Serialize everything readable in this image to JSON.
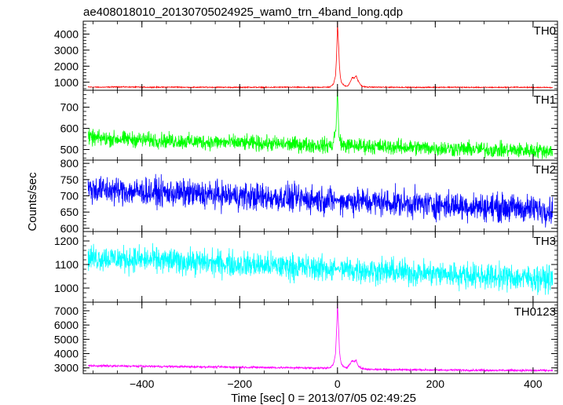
{
  "title": "ae408018010_20130705024925_wam0_trn_4band_long.qdp",
  "ylabel": "Counts/sec",
  "xlabel": "Time [sec] 0 = 2013/07/05 02:49:25",
  "colors": {
    "TH0": "#ff0000",
    "TH1": "#00ff00",
    "TH2": "#0000ff",
    "TH3": "#00ffff",
    "TH0123": "#ff00ff",
    "frame": "#000000"
  },
  "chart_data": {
    "type": "line",
    "title": "ae408018010_20130705024925_wam0_trn_4band_long.qdp",
    "xlabel": "Time [sec] 0 = 2013/07/05 02:49:25",
    "ylabel": "Counts/sec",
    "xlim": [
      -520,
      450
    ],
    "x_ticks": [
      -400,
      -200,
      0,
      200,
      400
    ],
    "x_tick_labels": [
      "−400",
      "−200",
      "0",
      "200",
      "400"
    ],
    "grid": false,
    "panels": [
      {
        "name": "TH0",
        "ylim": [
          500,
          4800
        ],
        "y_ticks": [
          1000,
          2000,
          3000,
          4000
        ],
        "series": [
          {
            "name": "TH0",
            "x": [
              -510,
              -480,
              -450,
              -420,
              -390,
              -360,
              -330,
              -300,
              -270,
              -240,
              -210,
              -180,
              -150,
              -120,
              -90,
              -60,
              -30,
              -15,
              -8,
              -4,
              -2,
              0,
              2,
              4,
              6,
              8,
              10,
              14,
              18,
              22,
              26,
              30,
              34,
              38,
              42,
              46,
              50,
              60,
              90,
              120,
              150,
              180,
              210,
              240,
              270,
              300,
              330,
              360,
              390,
              420,
              440
            ],
            "y": [
              700,
              690,
              710,
              700,
              690,
              690,
              700,
              680,
              690,
              690,
              680,
              690,
              680,
              690,
              690,
              680,
              690,
              700,
              900,
              1400,
              2500,
              4700,
              3500,
              2000,
              1300,
              1000,
              900,
              800,
              750,
              800,
              1000,
              1300,
              1250,
              1400,
              1100,
              900,
              750,
              700,
              690,
              690,
              680,
              680,
              690,
              690,
              680,
              680,
              680,
              690,
              680,
              680,
              670
            ]
          }
        ]
      },
      {
        "name": "TH1",
        "ylim": [
          450,
          780
        ],
        "y_ticks": [
          500,
          600,
          700
        ],
        "series": [
          {
            "name": "TH1",
            "x": [
              -510,
              -480,
              -450,
              -420,
              -390,
              -360,
              -330,
              -300,
              -270,
              -240,
              -210,
              -180,
              -150,
              -120,
              -90,
              -60,
              -30,
              -10,
              -3,
              0,
              3,
              10,
              30,
              60,
              90,
              120,
              150,
              180,
              210,
              240,
              270,
              300,
              330,
              360,
              390,
              420,
              440
            ],
            "y": [
              555,
              552,
              550,
              548,
              545,
              543,
              540,
              538,
              536,
              534,
              532,
              530,
              528,
              526,
              524,
              522,
              520,
              520,
              600,
              780,
              560,
              520,
              518,
              516,
              514,
              512,
              510,
              508,
              506,
              504,
              502,
              500,
              498,
              497,
              496,
              495,
              494
            ]
          }
        ]
      },
      {
        "name": "TH2",
        "ylim": [
          590,
          810
        ],
        "y_ticks": [
          600,
          650,
          700,
          750,
          800
        ],
        "series": [
          {
            "name": "TH2",
            "x": [
              -510,
              -480,
              -450,
              -420,
              -390,
              -360,
              -330,
              -300,
              -270,
              -240,
              -210,
              -180,
              -150,
              -120,
              -90,
              -60,
              -30,
              0,
              30,
              60,
              90,
              120,
              150,
              180,
              210,
              240,
              270,
              300,
              330,
              360,
              390,
              420,
              440
            ],
            "y": [
              720,
              718,
              716,
              714,
              712,
              710,
              708,
              706,
              704,
              702,
              700,
              698,
              696,
              694,
              692,
              690,
              688,
              686,
              684,
              682,
              680,
              678,
              676,
              674,
              672,
              670,
              668,
              666,
              664,
              662,
              660,
              658,
              657
            ]
          }
        ]
      },
      {
        "name": "TH3",
        "ylim": [
          940,
          1240
        ],
        "y_ticks": [
          1000,
          1100,
          1200
        ],
        "series": [
          {
            "name": "TH3",
            "x": [
              -510,
              -480,
              -450,
              -420,
              -390,
              -360,
              -330,
              -300,
              -270,
              -240,
              -210,
              -180,
              -150,
              -120,
              -90,
              -60,
              -30,
              0,
              30,
              60,
              90,
              120,
              150,
              180,
              210,
              240,
              270,
              300,
              330,
              360,
              390,
              420,
              440
            ],
            "y": [
              1130,
              1128,
              1125,
              1122,
              1120,
              1117,
              1114,
              1111,
              1108,
              1105,
              1102,
              1099,
              1096,
              1093,
              1090,
              1087,
              1084,
              1081,
              1078,
              1075,
              1072,
              1069,
              1066,
              1063,
              1060,
              1057,
              1054,
              1051,
              1048,
              1045,
              1042,
              1040,
              1038
            ]
          }
        ]
      },
      {
        "name": "TH0123",
        "ylim": [
          2600,
          7600
        ],
        "y_ticks": [
          3000,
          4000,
          5000,
          6000,
          7000
        ],
        "series": [
          {
            "name": "TH0123",
            "x": [
              -510,
              -480,
              -450,
              -420,
              -390,
              -360,
              -330,
              -300,
              -270,
              -240,
              -210,
              -180,
              -150,
              -120,
              -90,
              -60,
              -30,
              -15,
              -8,
              -4,
              -2,
              0,
              2,
              4,
              6,
              8,
              10,
              14,
              18,
              22,
              26,
              30,
              34,
              38,
              42,
              46,
              50,
              60,
              90,
              120,
              150,
              180,
              210,
              240,
              270,
              300,
              330,
              360,
              390,
              420,
              440
            ],
            "y": [
              3150,
              3140,
              3130,
              3120,
              3110,
              3100,
              3090,
              3080,
              3070,
              3060,
              3050,
              3040,
              3030,
              3020,
              3010,
              3000,
              2990,
              3000,
              3300,
              4000,
              5500,
              7500,
              6000,
              4200,
              3600,
              3300,
              3150,
              3050,
              3000,
              3100,
              3300,
              3500,
              3400,
              3550,
              3200,
              3050,
              2950,
              2900,
              2890,
              2880,
              2870,
              2860,
              2850,
              2850,
              2840,
              2840,
              2830,
              2830,
              2820,
              2820,
              2810
            ]
          }
        ]
      }
    ]
  }
}
